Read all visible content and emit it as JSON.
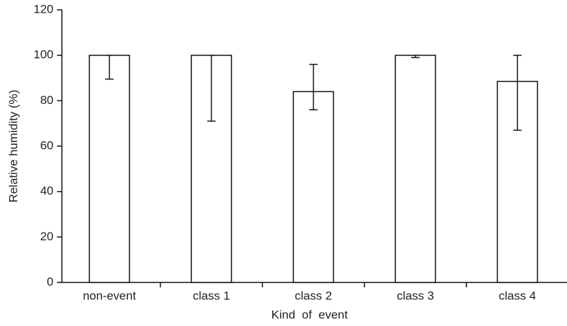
{
  "chart_data": {
    "type": "bar",
    "xlabel": "Kind  of  event",
    "ylabel": "Relative humidity (%)",
    "categories": [
      "non-event",
      "class 1",
      "class 2",
      "class 3",
      "class 4"
    ],
    "values": [
      100,
      100,
      84,
      100,
      88.5
    ],
    "error_minus": [
      10.5,
      29,
      8,
      1,
      21.5
    ],
    "error_plus": [
      0,
      0,
      12,
      0,
      11.5
    ],
    "color": "#ffffff",
    "ylim": [
      0,
      120
    ],
    "yticks": [
      0,
      20,
      40,
      60,
      80,
      100,
      120
    ],
    "grid": false
  }
}
